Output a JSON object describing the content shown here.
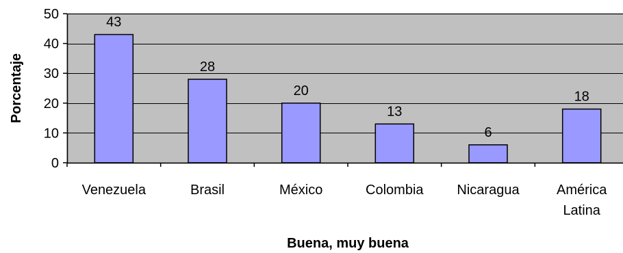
{
  "chart_data": {
    "type": "bar",
    "categories": [
      [
        "Venezuela"
      ],
      [
        "Brasil"
      ],
      [
        "México"
      ],
      [
        "Colombia"
      ],
      [
        "Nicaragua"
      ],
      [
        "América",
        "Latina"
      ]
    ],
    "values": [
      43,
      28,
      20,
      13,
      6,
      18
    ],
    "data_labels": [
      "43",
      "28",
      "20",
      "13",
      "6",
      "18"
    ],
    "xlabel": "Buena, muy buena",
    "ylabel": "Porcentaje",
    "ylim": [
      0,
      50
    ],
    "yticks": [
      0,
      10,
      20,
      30,
      40,
      50
    ],
    "grid": true,
    "legend": "none",
    "colors": {
      "plot_background": "#c0c0c0",
      "bar_fill": "#9999ff",
      "bar_stroke": "#000000",
      "gridline": "#000000"
    }
  }
}
